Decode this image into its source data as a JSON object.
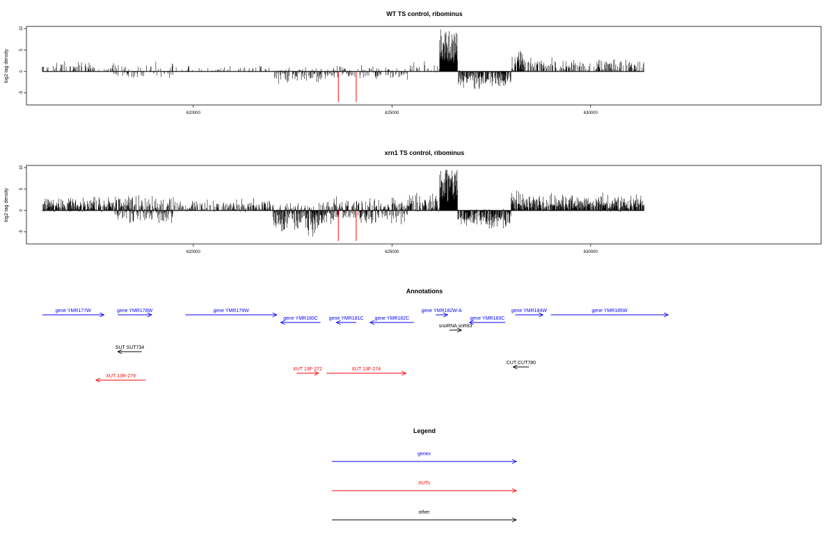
{
  "colors": {
    "genes": "#0000ff",
    "XUTs": "#ff0000",
    "other": "#000000",
    "highlight": "#ff0000",
    "bar": "#000000"
  },
  "chart_data": [
    {
      "type": "bar",
      "id": "wt",
      "title": "WT TS control, ribominus",
      "ylabel": "log2 tag density",
      "xlim": [
        615800,
        635800
      ],
      "ylim": [
        -7.8,
        10.5
      ],
      "yticks": [
        -5,
        0,
        5,
        10
      ],
      "ytick_labels": [
        "-5",
        "0",
        "5",
        "10"
      ],
      "xticks": [
        620000,
        625000,
        630000
      ],
      "xtick_labels": [
        "620000",
        "625000",
        "630000"
      ],
      "grid": false,
      "density": "sparse",
      "x_range": [
        616200,
        631350
      ],
      "highlighted_bars": [
        {
          "x": 623650,
          "y": -7.1
        },
        {
          "x": 624100,
          "y": -7.1
        }
      ]
    },
    {
      "type": "bar",
      "id": "xrn1",
      "title": "xrn1 TS control, ribominus",
      "ylabel": "log2 tag density",
      "xlim": [
        615800,
        635800
      ],
      "ylim": [
        -7.8,
        10.5
      ],
      "yticks": [
        -5,
        0,
        5,
        10
      ],
      "ytick_labels": [
        "-5",
        "0",
        "5",
        "10"
      ],
      "xticks": [
        620000,
        625000,
        630000
      ],
      "xtick_labels": [
        "620000",
        "625000",
        "630000"
      ],
      "grid": false,
      "density": "dense",
      "x_range": [
        616200,
        631350
      ],
      "highlighted_bars": [
        {
          "x": 623650,
          "y": -7.1
        },
        {
          "x": 624100,
          "y": -7.1
        }
      ]
    }
  ],
  "annotations": {
    "title": "Annotations",
    "xlim": [
      615800,
      635800
    ],
    "features": [
      {
        "label": "gene YMR177W",
        "category": "genes",
        "start": 616200,
        "end": 617750,
        "strand": "+",
        "row": 1
      },
      {
        "label": "gene YMR178W",
        "category": "genes",
        "start": 618100,
        "end": 618950,
        "strand": "+",
        "row": 1
      },
      {
        "label": "gene YMR179W",
        "category": "genes",
        "start": 619800,
        "end": 622100,
        "strand": "+",
        "row": 1
      },
      {
        "label": "gene YMR180C",
        "category": "genes",
        "start": 622200,
        "end": 623200,
        "strand": "-",
        "row": 2
      },
      {
        "label": "gene YMR181C",
        "category": "genes",
        "start": 623600,
        "end": 624100,
        "strand": "-",
        "row": 2
      },
      {
        "label": "gene YMR182C",
        "category": "genes",
        "start": 624450,
        "end": 625550,
        "strand": "-",
        "row": 2
      },
      {
        "label": "gene YMR182W-A",
        "category": "genes",
        "start": 626100,
        "end": 626400,
        "strand": "+",
        "row": 1
      },
      {
        "label": "snoRNA snR83",
        "category": "other",
        "start": 626450,
        "end": 626750,
        "strand": "+",
        "row": 3
      },
      {
        "label": "gene YMR183C",
        "category": "genes",
        "start": 626950,
        "end": 627850,
        "strand": "-",
        "row": 2
      },
      {
        "label": "gene YMR184W",
        "category": "genes",
        "start": 628100,
        "end": 628800,
        "strand": "+",
        "row": 1
      },
      {
        "label": "gene YMR185W",
        "category": "genes",
        "start": 629000,
        "end": 631950,
        "strand": "+",
        "row": 1
      },
      {
        "label": "SUT SUT734",
        "category": "other",
        "start": 618100,
        "end": 618700,
        "strand": "-",
        "row": 4
      },
      {
        "label": "CUT CUT780",
        "category": "other",
        "start": 628050,
        "end": 628450,
        "strand": "-",
        "row": 5
      },
      {
        "label": "XUT 13F-272",
        "category": "XUTs",
        "start": 622600,
        "end": 623150,
        "strand": "+",
        "row": 6
      },
      {
        "label": "XUT 13F-274",
        "category": "XUTs",
        "start": 623350,
        "end": 625350,
        "strand": "+",
        "row": 6
      },
      {
        "label": "XUT 13R-279",
        "category": "XUTs",
        "start": 617550,
        "end": 618800,
        "strand": "-",
        "row": 7
      }
    ]
  },
  "legend": {
    "title": "Legend",
    "items": [
      {
        "label": "genes",
        "category": "genes"
      },
      {
        "label": "XUTs",
        "category": "XUTs"
      },
      {
        "label": "other",
        "category": "other"
      }
    ]
  }
}
